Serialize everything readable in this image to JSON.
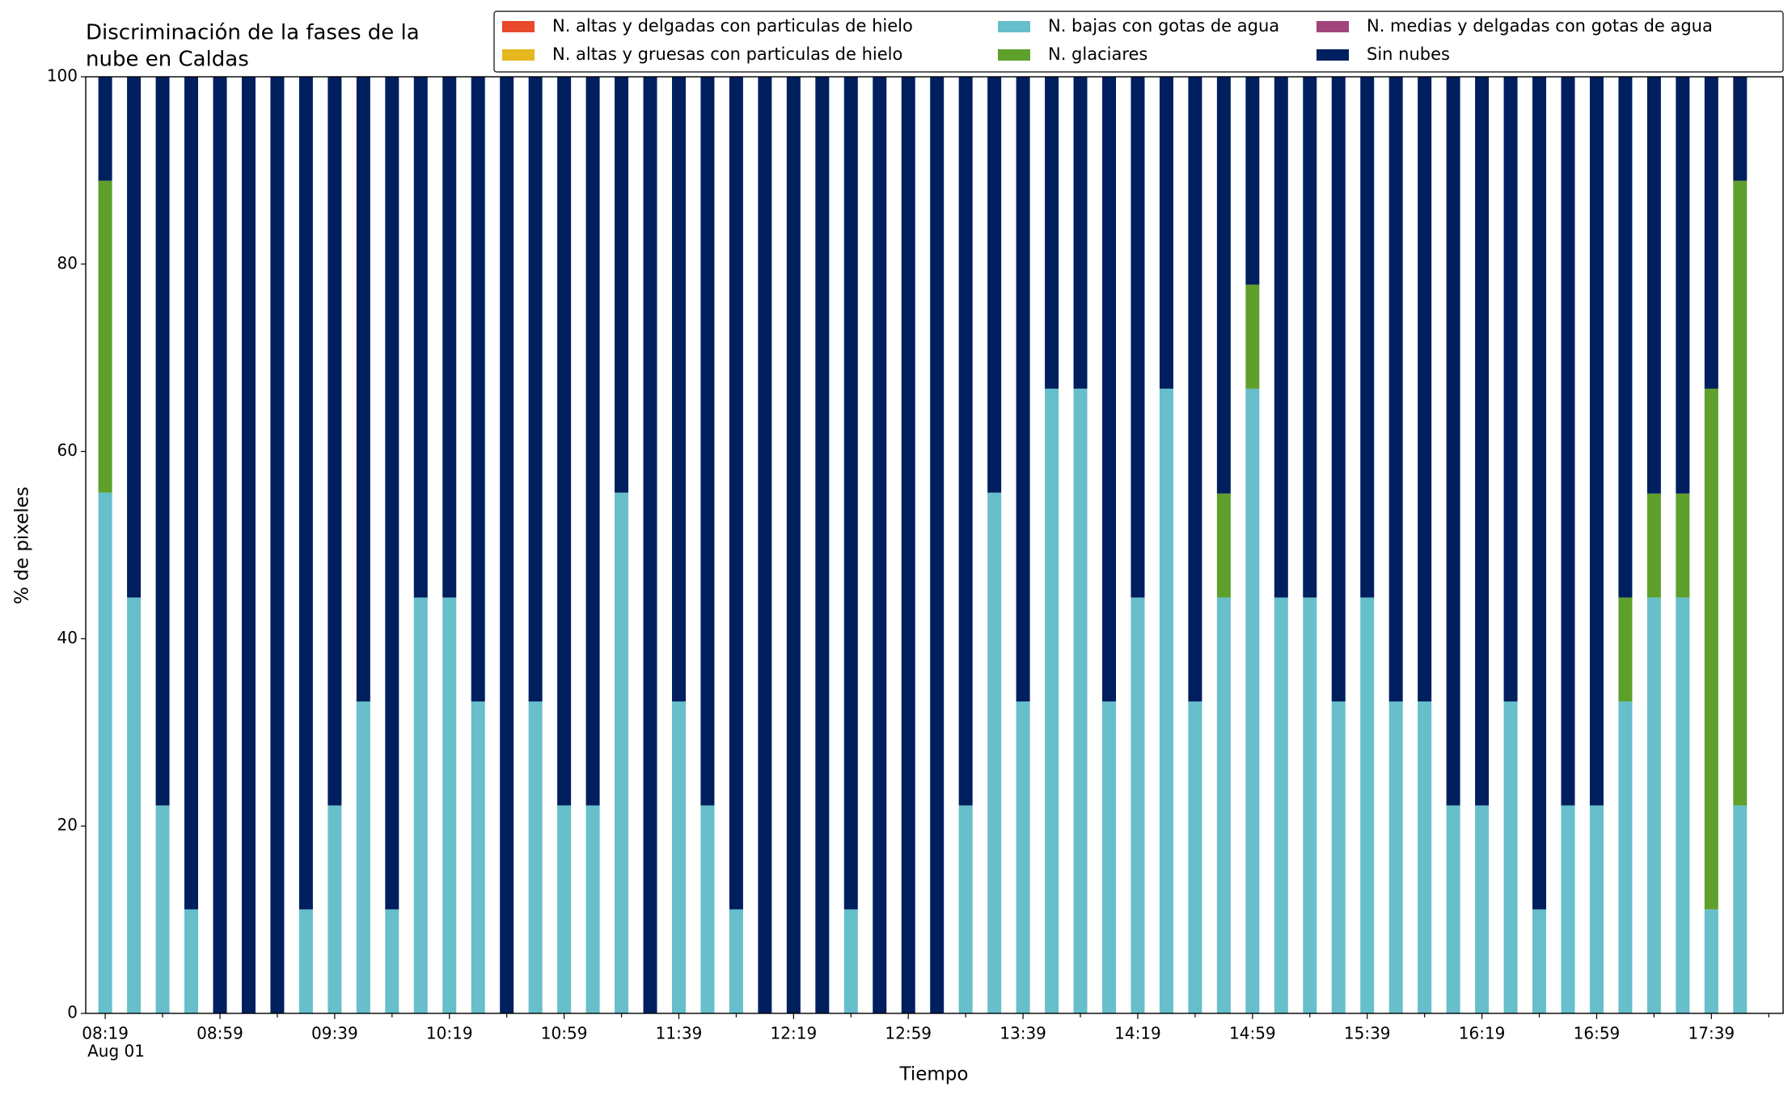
{
  "chart_data": {
    "type": "stacked_bar",
    "title": "Discriminación de la fases de la nube en Caldas",
    "title_lines": [
      "Discriminación de la fases de la",
      "nube en Caldas"
    ],
    "xlabel": "Tiempo",
    "ylabel": "% de pixeles",
    "x_date_label": "Aug 01",
    "categories": [
      "08:19",
      null,
      null,
      null,
      "08:59",
      null,
      null,
      null,
      "09:39",
      null,
      null,
      null,
      "10:19",
      null,
      null,
      null,
      "10:59",
      null,
      null,
      null,
      "11:39",
      null,
      null,
      null,
      "12:19",
      null,
      null,
      null,
      "12:59",
      null,
      null,
      null,
      "13:39",
      null,
      null,
      null,
      "14:19",
      null,
      null,
      null,
      "14:59",
      null,
      null,
      null,
      "15:39",
      null,
      null,
      null,
      "16:19",
      null,
      null,
      null,
      "16:59",
      null,
      null,
      null,
      "17:39",
      null
    ],
    "ylim": [
      0,
      100
    ],
    "yticks": [
      0,
      20,
      40,
      60,
      80,
      100
    ],
    "legend": "top-right",
    "legend_columns": 3,
    "series": [
      {
        "name": "N. altas y delgadas con particulas de hielo",
        "color": "#e8482c",
        "values": [
          0,
          0,
          0,
          0,
          0,
          0,
          0,
          0,
          0,
          0,
          0,
          0,
          0,
          0,
          0,
          0,
          0,
          0,
          0,
          0,
          0,
          0,
          0,
          0,
          0,
          0,
          0,
          0,
          0,
          0,
          0,
          0,
          0,
          0,
          0,
          0,
          0,
          0,
          0,
          0,
          0,
          0,
          0,
          0,
          0,
          0,
          0,
          0,
          0,
          0,
          0,
          0,
          0,
          0,
          0,
          0,
          0,
          0
        ]
      },
      {
        "name": "N. altas y gruesas con particulas de hielo",
        "color": "#e6b71e",
        "values": [
          0,
          0,
          0,
          0,
          0,
          0,
          0,
          0,
          0,
          0,
          0,
          0,
          0,
          0,
          0,
          0,
          0,
          0,
          0,
          0,
          0,
          0,
          0,
          0,
          0,
          0,
          0,
          0,
          0,
          0,
          0,
          0,
          0,
          0,
          0,
          0,
          0,
          0,
          0,
          0,
          0,
          0,
          0,
          0,
          0,
          0,
          0,
          0,
          0,
          0,
          0,
          0,
          0,
          0,
          0,
          0,
          0,
          0
        ]
      },
      {
        "name": "N. bajas con gotas de agua",
        "color": "#66bfca",
        "values": [
          55.6,
          44.4,
          22.2,
          11.1,
          0,
          0,
          0,
          11.1,
          22.2,
          33.3,
          11.1,
          44.4,
          44.4,
          33.3,
          0,
          33.3,
          22.2,
          22.2,
          55.6,
          0,
          33.3,
          22.2,
          11.1,
          0,
          0,
          0,
          11.1,
          0,
          0,
          0,
          22.2,
          55.6,
          33.3,
          66.7,
          66.7,
          33.3,
          44.4,
          66.7,
          33.3,
          44.4,
          66.7,
          44.4,
          44.4,
          33.3,
          44.4,
          33.3,
          33.3,
          22.2,
          22.2,
          33.3,
          11.1,
          22.2,
          22.2,
          33.3,
          44.4,
          44.4,
          11.1,
          22.2
        ]
      },
      {
        "name": "N. glaciares",
        "color": "#5fa02d",
        "values": [
          33.3,
          0,
          0,
          0,
          0,
          0,
          0,
          0,
          0,
          0,
          0,
          0,
          0,
          0,
          0,
          0,
          0,
          0,
          0,
          0,
          0,
          0,
          0,
          0,
          0,
          0,
          0,
          0,
          0,
          0,
          0,
          0,
          0,
          0,
          0,
          0,
          0,
          0,
          0,
          11.1,
          11.1,
          0,
          0,
          0,
          0,
          0,
          0,
          0,
          0,
          0,
          0,
          0,
          0,
          11.1,
          11.1,
          11.1,
          55.6,
          66.7
        ]
      },
      {
        "name": "N. medias y delgadas con gotas de agua",
        "color": "#a0457a",
        "values": [
          0,
          0,
          0,
          0,
          0,
          0,
          0,
          0,
          0,
          0,
          0,
          0,
          0,
          0,
          0,
          0,
          0,
          0,
          0,
          0,
          0,
          0,
          0,
          0,
          0,
          0,
          0,
          0,
          0,
          0,
          0,
          0,
          0,
          0,
          0,
          0,
          0,
          0,
          0,
          0,
          0,
          0,
          0,
          0,
          0,
          0,
          0,
          0,
          0,
          0,
          0,
          0,
          0,
          0,
          0,
          0,
          0,
          0
        ]
      },
      {
        "name": "Sin nubes",
        "color": "#001f5f",
        "values": [
          11.1,
          55.6,
          77.8,
          88.9,
          100,
          100,
          100,
          88.9,
          77.8,
          66.7,
          88.9,
          55.6,
          55.6,
          66.7,
          100,
          66.7,
          77.8,
          77.8,
          44.4,
          100,
          66.7,
          77.8,
          88.9,
          100,
          100,
          100,
          88.9,
          100,
          100,
          100,
          77.8,
          44.4,
          66.7,
          33.3,
          33.3,
          66.7,
          55.6,
          33.3,
          66.7,
          44.5,
          22.2,
          55.6,
          55.6,
          66.7,
          55.6,
          66.7,
          66.7,
          77.8,
          77.8,
          66.7,
          88.9,
          77.8,
          77.8,
          55.6,
          44.5,
          44.5,
          33.3,
          11.1
        ]
      }
    ]
  }
}
